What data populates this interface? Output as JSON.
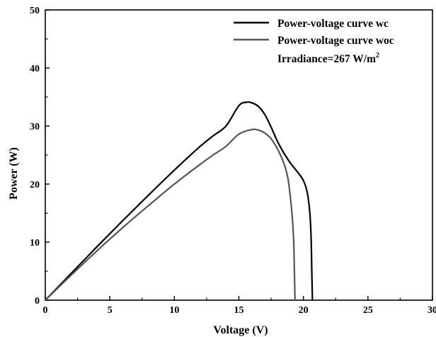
{
  "chart_data": {
    "type": "line",
    "xlabel": "Voltage (V)",
    "ylabel": "Power (W)",
    "xlim": [
      0,
      30
    ],
    "ylim": [
      0,
      50
    ],
    "x_ticks": [
      "0",
      "5",
      "10",
      "15",
      "20",
      "25",
      "30"
    ],
    "y_ticks": [
      "0",
      "10",
      "20",
      "30",
      "40",
      "50"
    ],
    "grid": false,
    "legend_position": "top-right",
    "annotation": {
      "text": "Irradiance=267 W/m",
      "superscript": "2"
    },
    "series": [
      {
        "name": "Power-voltage curve wc",
        "color": "#000000",
        "points": [
          [
            0,
            0
          ],
          [
            2,
            4.6
          ],
          [
            4,
            9.2
          ],
          [
            6,
            13.7
          ],
          [
            8,
            18.1
          ],
          [
            10,
            22.4
          ],
          [
            12,
            26.5
          ],
          [
            13,
            28.3
          ],
          [
            14,
            30.0
          ],
          [
            15,
            33.5
          ],
          [
            15.6,
            34.1
          ],
          [
            16,
            34.0
          ],
          [
            16.5,
            33.4
          ],
          [
            17,
            32.0
          ],
          [
            17.5,
            29.8
          ],
          [
            18,
            27.3
          ],
          [
            18.5,
            25.3
          ],
          [
            19,
            23.6
          ],
          [
            19.5,
            22.2
          ],
          [
            20,
            20.6
          ],
          [
            20.3,
            18.5
          ],
          [
            20.5,
            15.0
          ],
          [
            20.6,
            10.5
          ],
          [
            20.65,
            5.0
          ],
          [
            20.7,
            0
          ]
        ]
      },
      {
        "name": "Power-voltage curve woc",
        "color": "#555555",
        "points": [
          [
            0,
            0
          ],
          [
            2,
            4.3
          ],
          [
            4,
            8.5
          ],
          [
            6,
            12.5
          ],
          [
            8,
            16.3
          ],
          [
            10,
            20.0
          ],
          [
            12,
            23.4
          ],
          [
            13,
            25.0
          ],
          [
            14,
            26.5
          ],
          [
            15,
            28.6
          ],
          [
            16,
            29.4
          ],
          [
            16.5,
            29.3
          ],
          [
            17,
            28.8
          ],
          [
            17.5,
            27.8
          ],
          [
            18,
            26.0
          ],
          [
            18.5,
            23.5
          ],
          [
            18.8,
            21.0
          ],
          [
            19.0,
            17.5
          ],
          [
            19.15,
            14.0
          ],
          [
            19.25,
            10.0
          ],
          [
            19.3,
            5.0
          ],
          [
            19.35,
            0
          ]
        ]
      }
    ]
  }
}
